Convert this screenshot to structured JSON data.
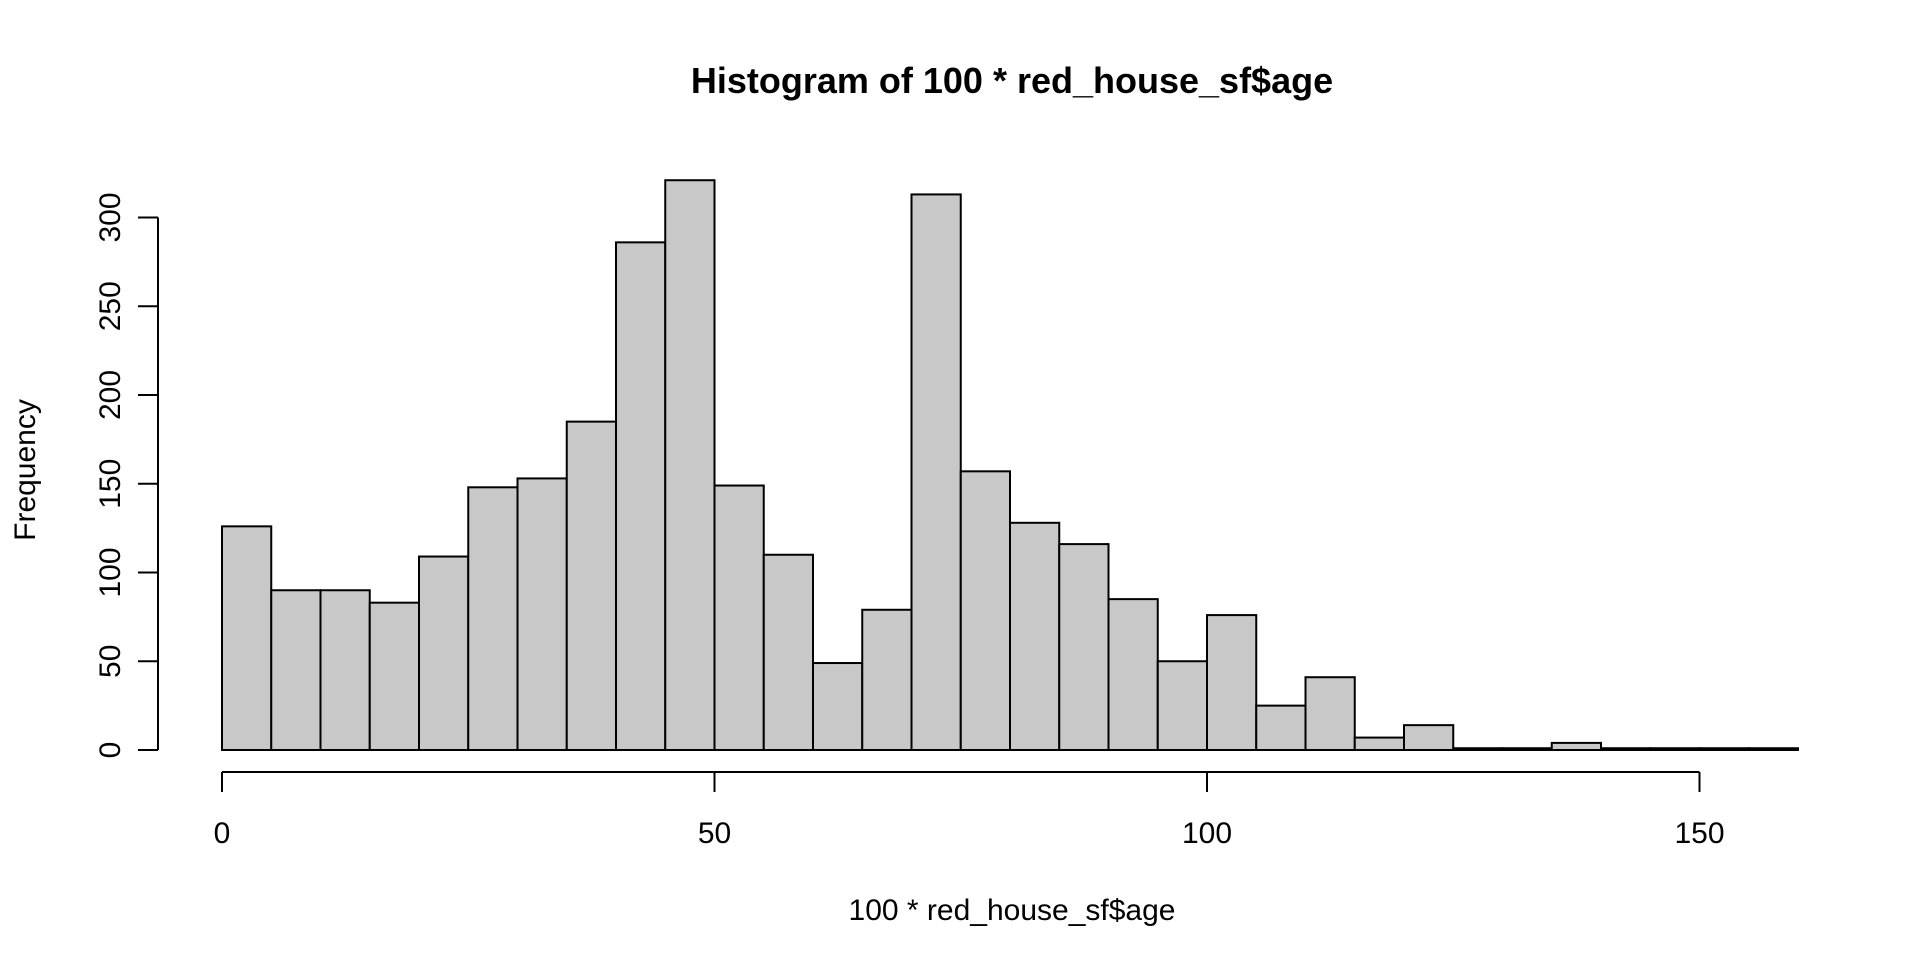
{
  "chart_data": {
    "type": "bar",
    "title": "Histogram of 100 * red_house_sf$age",
    "xlabel": "100 * red_house_sf$age",
    "ylabel": "Frequency",
    "bin_width": 5,
    "bin_starts": [
      0,
      5,
      10,
      15,
      20,
      25,
      30,
      35,
      40,
      45,
      50,
      55,
      60,
      65,
      70,
      75,
      80,
      85,
      90,
      95,
      100,
      105,
      110,
      115,
      120,
      125,
      130,
      135,
      140,
      145,
      150,
      155
    ],
    "values": [
      126,
      90,
      90,
      83,
      109,
      148,
      153,
      185,
      286,
      321,
      149,
      110,
      49,
      79,
      313,
      157,
      128,
      116,
      85,
      50,
      76,
      25,
      41,
      7,
      14,
      1,
      1,
      4,
      1,
      1,
      1,
      1
    ],
    "xlim": [
      0,
      160
    ],
    "ylim": [
      0,
      300
    ],
    "x_ticks": [
      0,
      50,
      100,
      150
    ],
    "x_tick_labels": [
      "0",
      "50",
      "100",
      "150"
    ],
    "y_ticks": [
      0,
      50,
      100,
      150,
      200,
      250,
      300
    ],
    "y_tick_labels": [
      "0",
      "50",
      "100",
      "150",
      "200",
      "250",
      "300"
    ],
    "bar_fill": "#c8c8c8",
    "bar_stroke": "#000000",
    "grid": false
  }
}
